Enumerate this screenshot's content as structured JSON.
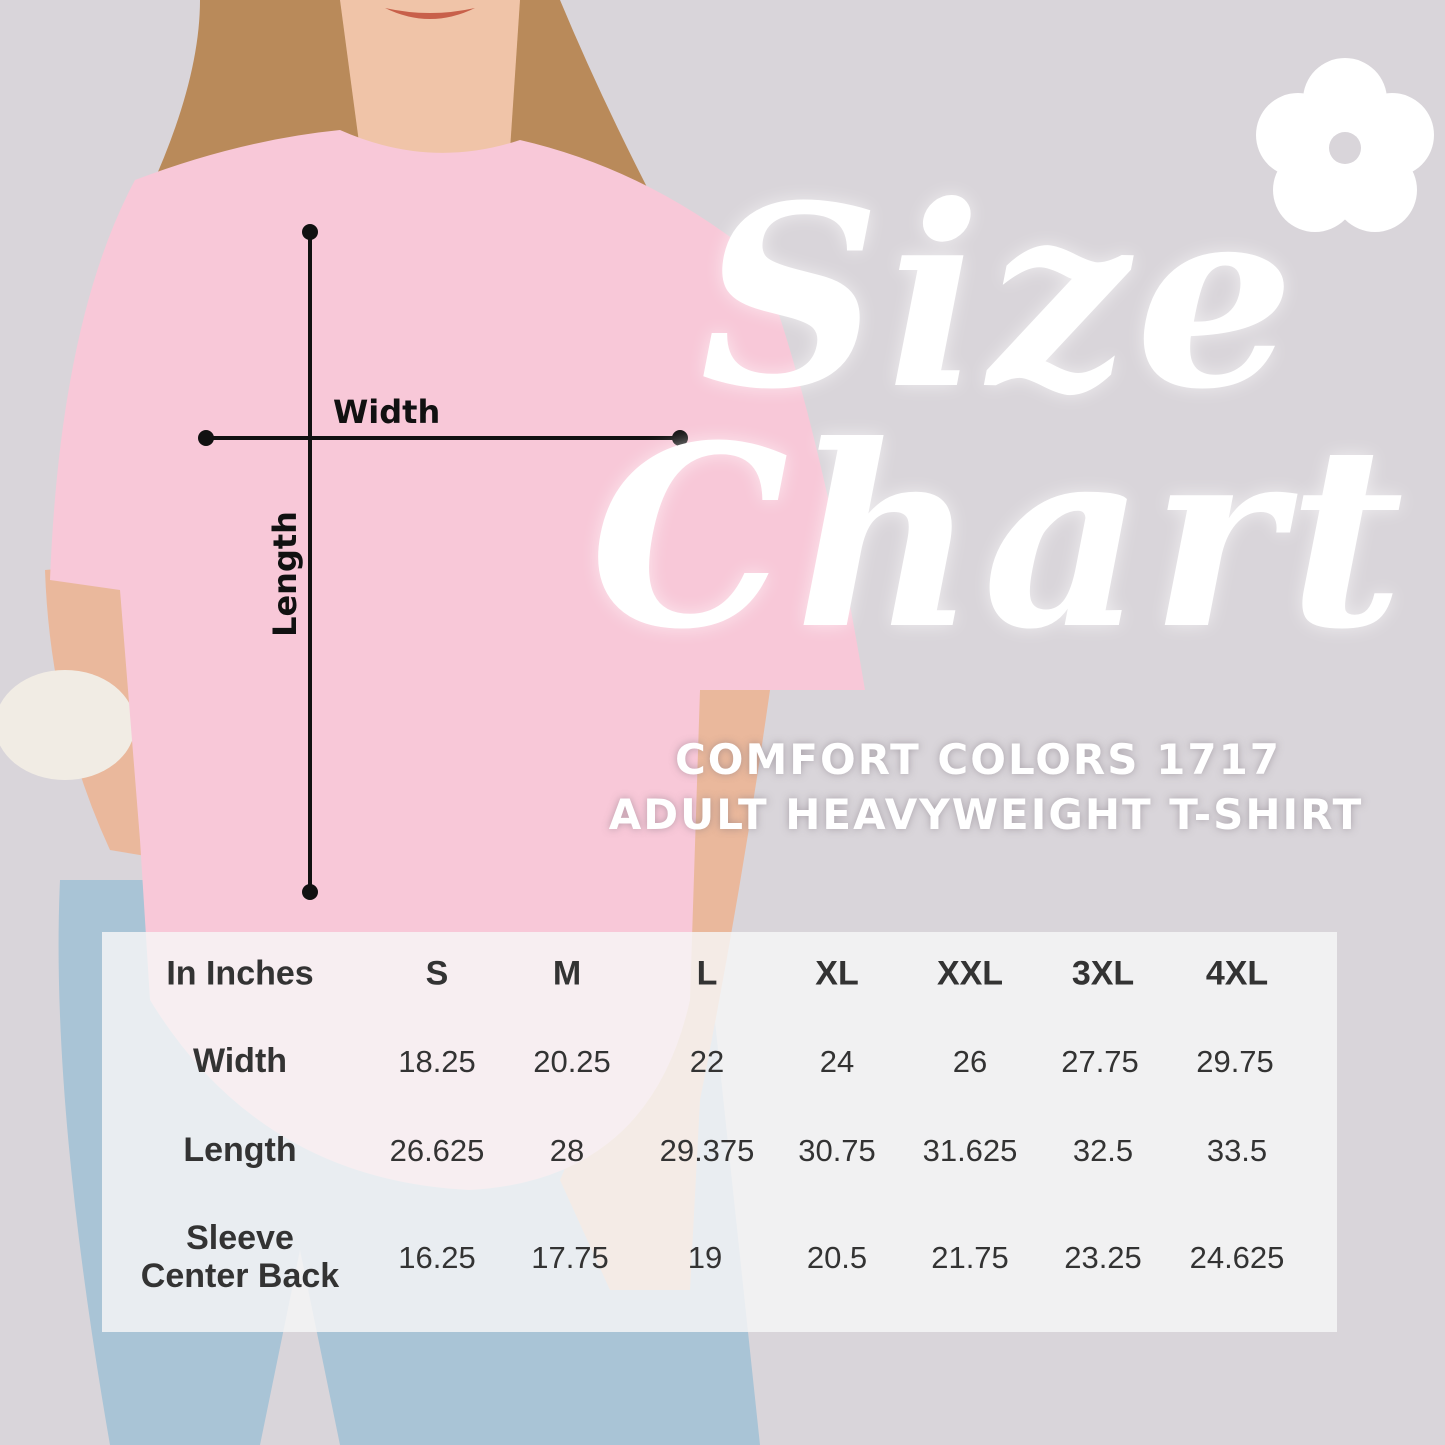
{
  "title": {
    "line1": "Size",
    "line2": "Chart"
  },
  "subtitle": {
    "line1": "COMFORT COLORS 1717",
    "line2": "ADULT HEAVYWEIGHT T-SHIRT"
  },
  "measurements": {
    "width_label": "Width",
    "length_label": "Length"
  },
  "colors": {
    "background": "#d9d5da",
    "shirt": "#f8c8d8",
    "text": "#333333",
    "title": "#ffffff"
  },
  "icons": {
    "flower": "flower-icon"
  },
  "table": {
    "unit_header": "In Inches",
    "sizes": [
      "S",
      "M",
      "L",
      "XL",
      "XXL",
      "3XL",
      "4XL"
    ],
    "rows": [
      {
        "label": "Width",
        "values": [
          "18.25",
          "20.25",
          "22",
          "24",
          "26",
          "27.75",
          "29.75"
        ]
      },
      {
        "label": "Length",
        "values": [
          "26.625",
          "28",
          "29.375",
          "30.75",
          "31.625",
          "32.5",
          "33.5"
        ]
      },
      {
        "label_line1": "Sleeve",
        "label_line2": "Center Back",
        "values": [
          "16.25",
          "17.75",
          "19",
          "20.5",
          "21.75",
          "23.25",
          "24.625"
        ]
      }
    ]
  }
}
